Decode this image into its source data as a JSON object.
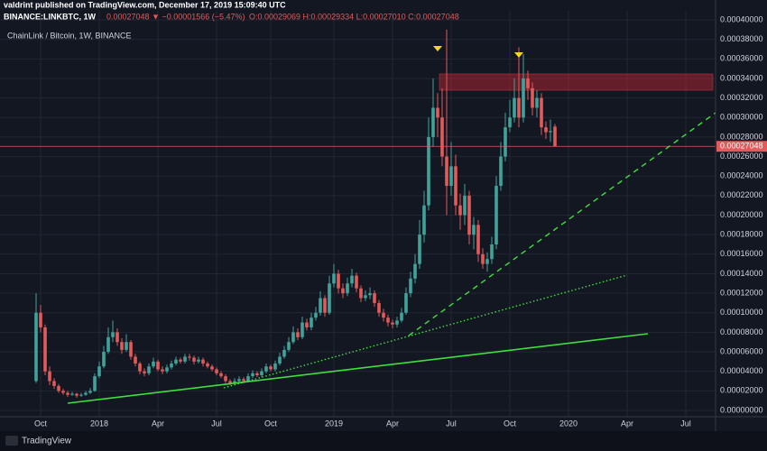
{
  "chart_data": {
    "type": "candlestick",
    "publisher": "valdrint published on TradingView.com, December 17, 2019 15:09:40 UTC",
    "symbol": "BINANCE:LINKBTC, 1W",
    "change": "0.00027048 ▼ −0.00001566 (−5.47%)",
    "ohlc": "O:0.00029069 H:0.00029334 L:0.00027010 C:0.00027048",
    "title": "ChainLink / Bitcoin, 1W, BINANCE",
    "last_label": "0.00027048",
    "brand": "TradingView",
    "up_color": "#3fa39b",
    "down_color": "#e25a5a",
    "open": [
      3e-05,
      0.0001,
      8.5e-05,
      4e-05,
      3e-05,
      2.5e-05,
      2e-05,
      1.8e-05,
      1.6e-05,
      1.7e-05,
      1.5e-05,
      1.6e-05,
      1.8e-05,
      2e-05,
      3.5e-05,
      4.5e-05,
      6e-05,
      7.5e-05,
      8e-05,
      7e-05,
      6.2e-05,
      7e-05,
      5.5e-05,
      4.8e-05,
      4e-05,
      3.8e-05,
      4.5e-05,
      5e-05,
      4.2e-05,
      4e-05,
      4.4e-05,
      4.8e-05,
      5.2e-05,
      5e-05,
      5.5e-05,
      5.4e-05,
      5e-05,
      5.2e-05,
      4.8e-05,
      4.5e-05,
      4.2e-05,
      3.8e-05,
      3.5e-05,
      3e-05,
      2.8e-05,
      3e-05,
      3.2e-05,
      3e-05,
      3.5e-05,
      3.8e-05,
      3.6e-05,
      4e-05,
      4.5e-05,
      4.2e-05,
      4.8e-05,
      5.5e-05,
      6.2e-05,
      7e-05,
      8e-05,
      7.5e-05,
      9e-05,
      8.5e-05,
      9.5e-05,
      0.0001,
      0.000115,
      0.0001,
      0.00013,
      0.00014,
      0.000125,
      0.00012,
      0.00013,
      0.000138,
      0.000125,
      0.000115,
      0.000118,
      0.00012,
      0.00011,
      0.0001,
      9.5e-05,
      9e-05,
      8.8e-05,
      9.2e-05,
      0.0001,
      0.00012,
      0.000135,
      0.00015,
      0.00018,
      0.00021,
      0.00028,
      0.00031,
      0.0003,
      0.00026,
      0.00023,
      0.00025,
      0.00021,
      0.0002,
      0.00022,
      0.00018,
      0.00019,
      0.00016,
      0.00015,
      0.000155,
      0.00017,
      0.00023,
      0.00026,
      0.00029,
      0.0003,
      0.00032,
      0.0003,
      0.00034,
      0.00033,
      0.00031,
      0.00032,
      0.00029,
      0.000285,
      0.00029069
    ],
    "high": [
      0.00012,
      0.000108,
      8.8e-05,
      4.5e-05,
      3.3e-05,
      2.7e-05,
      2.2e-05,
      2e-05,
      1.9e-05,
      1.8e-05,
      1.8e-05,
      2e-05,
      2.3e-05,
      3.8e-05,
      5e-05,
      6.6e-05,
      8.5e-05,
      9.2e-05,
      8.4e-05,
      7.4e-05,
      7.8e-05,
      7.2e-05,
      5.8e-05,
      5e-05,
      4.3e-05,
      4.8e-05,
      5.4e-05,
      5.2e-05,
      4.5e-05,
      4.7e-05,
      5.1e-05,
      5.5e-05,
      5.4e-05,
      5.8e-05,
      5.8e-05,
      5.6e-05,
      5.5e-05,
      5.4e-05,
      5e-05,
      4.7e-05,
      4.4e-05,
      4e-05,
      3.7e-05,
      3.2e-05,
      3.3e-05,
      3.5e-05,
      3.4e-05,
      3.8e-05,
      4.1e-05,
      4e-05,
      4.3e-05,
      4.8e-05,
      4.7e-05,
      5.1e-05,
      5.9e-05,
      6.6e-05,
      7.5e-05,
      8.6e-05,
      8.4e-05,
      9.6e-05,
      9.4e-05,
      0.0001,
      0.000106,
      0.000122,
      0.000118,
      0.000138,
      0.00015,
      0.000144,
      0.00013,
      0.000136,
      0.000145,
      0.000141,
      0.000128,
      0.000123,
      0.000126,
      0.000123,
      0.000113,
      0.000104,
      9.8e-05,
      9.3e-05,
      9.6e-05,
      0.000105,
      0.000126,
      0.000142,
      0.00016,
      0.000195,
      0.000225,
      0.0003,
      0.00034,
      0.000325,
      0.00033,
      0.00039,
      0.000275,
      0.000262,
      0.000222,
      0.000232,
      0.000225,
      0.000198,
      0.000195,
      0.000166,
      0.000162,
      0.000178,
      0.00024,
      0.000275,
      0.000305,
      0.000318,
      0.00034,
      0.000372,
      0.000365,
      0.000348,
      0.000336,
      0.000328,
      0.000325,
      0.000296,
      0.000298,
      0.00029334
    ],
    "low": [
      2.8e-05,
      8e-05,
      3.6e-05,
      2.6e-05,
      2.2e-05,
      1.8e-05,
      1.6e-05,
      1.4e-05,
      1.5e-05,
      1.3e-05,
      1.4e-05,
      1.5e-05,
      1.7e-05,
      1.9e-05,
      3.3e-05,
      4.3e-05,
      5.8e-05,
      7e-05,
      6.6e-05,
      5.8e-05,
      6e-05,
      5.2e-05,
      4.5e-05,
      3.7e-05,
      3.5e-05,
      3.6e-05,
      4.3e-05,
      4e-05,
      3.7e-05,
      3.8e-05,
      4.2e-05,
      4.6e-05,
      4.8e-05,
      4.8e-05,
      5.1e-05,
      4.7e-05,
      4.8e-05,
      4.5e-05,
      4.3e-05,
      4e-05,
      3.6e-05,
      3.3e-05,
      2.8e-05,
      2.6e-05,
      2.6e-05,
      2.8e-05,
      2.8e-05,
      2.9e-05,
      3.3e-05,
      3.4e-05,
      3.4e-05,
      3.8e-05,
      4e-05,
      4e-05,
      4.6e-05,
      5.3e-05,
      6e-05,
      6.8e-05,
      7.2e-05,
      7.3e-05,
      8.2e-05,
      8.2e-05,
      9.2e-05,
      9.7e-05,
      9.6e-05,
      9.8e-05,
      0.000126,
      0.00012,
      0.000115,
      0.000117,
      0.000126,
      0.000121,
      0.000111,
      0.000112,
      0.000114,
      0.000106,
      9.6e-05,
      9.1e-05,
      8.6e-05,
      8.4e-05,
      8.5e-05,
      9e-05,
      9.8e-05,
      0.000116,
      0.00013,
      0.000145,
      0.000172,
      0.000205,
      0.00027,
      0.00028,
      0.00025,
      0.0002,
      0.00022,
      0.0002,
      0.000185,
      0.00019,
      0.00017,
      0.000165,
      0.000152,
      0.000145,
      0.000142,
      0.00015,
      0.000165,
      0.000225,
      0.000255,
      0.000285,
      0.000295,
      0.00029,
      0.000295,
      0.000318,
      0.000302,
      0.0003,
      0.000282,
      0.000278,
      0.000275,
      0.0002701
    ],
    "close": [
      0.0001,
      8.5e-05,
      4e-05,
      3e-05,
      2.5e-05,
      2e-05,
      1.8e-05,
      1.6e-05,
      1.7e-05,
      1.5e-05,
      1.6e-05,
      1.8e-05,
      2e-05,
      3.5e-05,
      4.5e-05,
      6e-05,
      7.5e-05,
      8e-05,
      7e-05,
      6.2e-05,
      7e-05,
      5.5e-05,
      4.8e-05,
      4e-05,
      3.8e-05,
      4.5e-05,
      5e-05,
      4.2e-05,
      4e-05,
      4.4e-05,
      4.8e-05,
      5.2e-05,
      5e-05,
      5.5e-05,
      5.4e-05,
      5e-05,
      5.2e-05,
      4.8e-05,
      4.5e-05,
      4.2e-05,
      3.8e-05,
      3.5e-05,
      3e-05,
      2.8e-05,
      3e-05,
      3.2e-05,
      3e-05,
      3.5e-05,
      3.8e-05,
      3.6e-05,
      4e-05,
      4.5e-05,
      4.2e-05,
      4.8e-05,
      5.5e-05,
      6.2e-05,
      7e-05,
      8e-05,
      7.5e-05,
      9e-05,
      8.5e-05,
      9.5e-05,
      0.0001,
      0.000115,
      0.0001,
      0.00013,
      0.00014,
      0.000125,
      0.00012,
      0.00013,
      0.000138,
      0.000125,
      0.000115,
      0.000118,
      0.00012,
      0.00011,
      0.0001,
      9.5e-05,
      9e-05,
      8.8e-05,
      9.2e-05,
      0.0001,
      0.00012,
      0.000135,
      0.00015,
      0.00018,
      0.00021,
      0.00028,
      0.00031,
      0.0003,
      0.00026,
      0.00023,
      0.00025,
      0.00021,
      0.0002,
      0.00022,
      0.00018,
      0.00019,
      0.00016,
      0.00015,
      0.000155,
      0.00017,
      0.00023,
      0.00026,
      0.00029,
      0.0003,
      0.00032,
      0.0003,
      0.00034,
      0.00033,
      0.00031,
      0.00032,
      0.00029,
      0.000285,
      0.00028614,
      0.00027048
    ],
    "xlim": [
      -8,
      150.6
    ],
    "xticks": [
      {
        "value": 1,
        "label": "Oct"
      },
      {
        "value": 14,
        "label": "2018"
      },
      {
        "value": 27,
        "label": "Apr"
      },
      {
        "value": 40,
        "label": "Jul"
      },
      {
        "value": 52,
        "label": "Oct"
      },
      {
        "value": 66,
        "label": "2019"
      },
      {
        "value": 79,
        "label": "Apr"
      },
      {
        "value": 92,
        "label": "Jul"
      },
      {
        "value": 105,
        "label": "Oct"
      },
      {
        "value": 118,
        "label": "2020"
      },
      {
        "value": 131,
        "label": "Apr"
      },
      {
        "value": 144,
        "label": "Jul"
      }
    ],
    "ylim": [
      -6.5e-06,
      0.0004093
    ],
    "yticks": [
      {
        "value": 0,
        "label": "0.00000000"
      },
      {
        "value": 2e-05,
        "label": "0.00002000"
      },
      {
        "value": 4e-05,
        "label": "0.00004000"
      },
      {
        "value": 6e-05,
        "label": "0.00006000"
      },
      {
        "value": 8e-05,
        "label": "0.00008000"
      },
      {
        "value": 0.0001,
        "label": "0.00010000"
      },
      {
        "value": 0.00012,
        "label": "0.00012000"
      },
      {
        "value": 0.00014,
        "label": "0.00014000"
      },
      {
        "value": 0.00016,
        "label": "0.00016000"
      },
      {
        "value": 0.00018,
        "label": "0.00018000"
      },
      {
        "value": 0.0002,
        "label": "0.00020000"
      },
      {
        "value": 0.00022,
        "label": "0.00022000"
      },
      {
        "value": 0.00024,
        "label": "0.00024000"
      },
      {
        "value": 0.00026,
        "label": "0.00026000"
      },
      {
        "value": 0.00028,
        "label": "0.00028000"
      },
      {
        "value": 0.0003,
        "label": "0.00030000"
      },
      {
        "value": 0.00032,
        "label": "0.00032000"
      },
      {
        "value": 0.00034,
        "label": "0.00034000"
      },
      {
        "value": 0.00036,
        "label": "0.00036000"
      },
      {
        "value": 0.00038,
        "label": "0.00038000"
      },
      {
        "value": 0.0004,
        "label": "0.00040000"
      }
    ],
    "grid": true
  }
}
